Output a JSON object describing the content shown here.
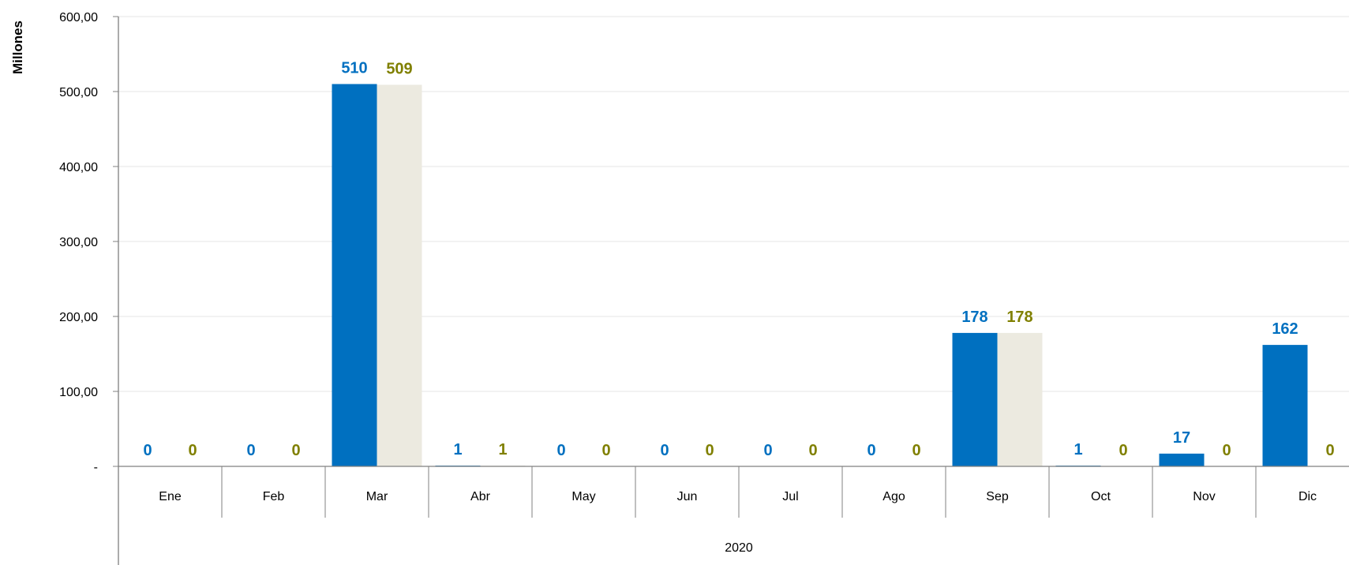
{
  "chart_data": {
    "type": "bar",
    "ylabel": "Millones",
    "group_label": "2020",
    "categories": [
      "Ene",
      "Feb",
      "Mar",
      "Abr",
      "May",
      "Jun",
      "Jul",
      "Ago",
      "Sep",
      "Oct",
      "Nov",
      "Dic"
    ],
    "series": [
      {
        "color": "#0070C0",
        "label_color": "#0070C0",
        "values": [
          0,
          0,
          510,
          1,
          0,
          0,
          0,
          0,
          178,
          1,
          17,
          162
        ],
        "labels": [
          "0",
          "0",
          "510",
          "1",
          "0",
          "0",
          "0",
          "0",
          "178",
          "1",
          "17",
          "162"
        ]
      },
      {
        "color": "#ECEAE0",
        "label_color": "#808000",
        "values": [
          0,
          0,
          509,
          1,
          0,
          0,
          0,
          0,
          178,
          0,
          0,
          0
        ],
        "labels": [
          "0",
          "0",
          "509",
          "1",
          "0",
          "0",
          "0",
          "0",
          "178",
          "0",
          "0",
          "0"
        ]
      }
    ],
    "ylim": [
      0,
      600
    ],
    "yticks": [
      0,
      100,
      200,
      300,
      400,
      500,
      600
    ],
    "ytick_labels": [
      "-",
      "100,00",
      "200,00",
      "300,00",
      "400,00",
      "500,00",
      "600,00"
    ],
    "grid": true,
    "legend": "none"
  }
}
